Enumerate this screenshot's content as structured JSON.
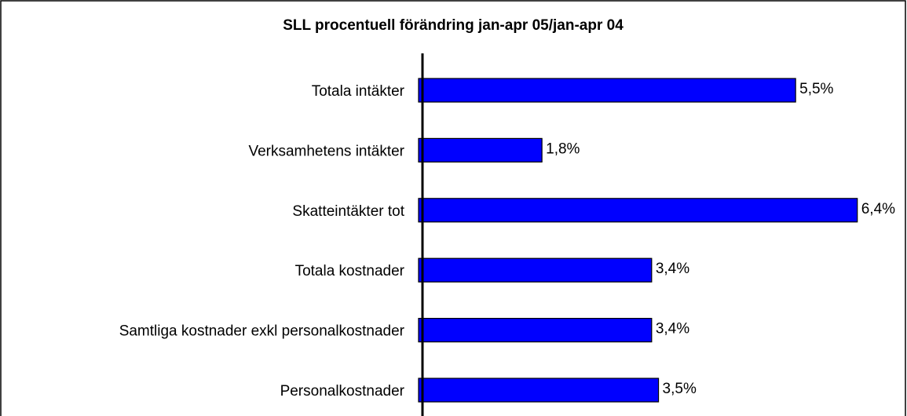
{
  "chart_data": {
    "type": "bar",
    "orientation": "horizontal",
    "title": "SLL procentuell förändring jan-apr 05/jan-apr 04",
    "categories": [
      "Totala intäkter",
      "Verksamhetens intäkter",
      "Skatteintäkter tot",
      "Totala kostnader",
      "Samtliga kostnader exkl personalkostnader",
      "Personalkostnader"
    ],
    "values": [
      5.5,
      1.8,
      6.4,
      3.4,
      3.4,
      3.5
    ],
    "value_labels": [
      "5,5%",
      "1,8%",
      "6,4%",
      "3,4%",
      "3,4%",
      "3,5%"
    ],
    "color": "#0000ff"
  }
}
